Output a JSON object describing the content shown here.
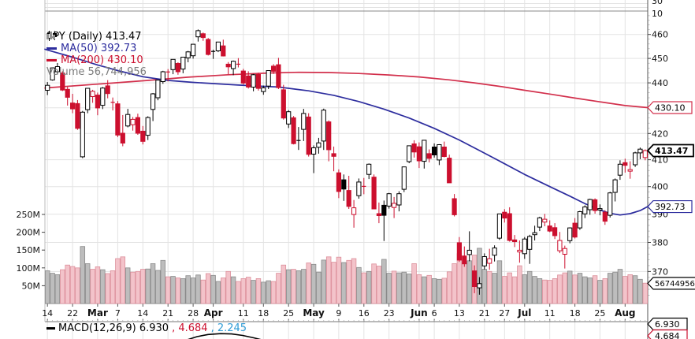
{
  "legend": {
    "symbol": "SPY (Daily) 413.47",
    "ma50": "MA(50) 392.73",
    "ma200": "MA(200) 430.10",
    "volume": "Volume 56,744,956"
  },
  "macd_legend": {
    "main": "MACD(12,26,9) 6.930",
    "signal": ", 4.684",
    "hist": ", 2.245"
  },
  "axis_tags": {
    "ma200": "430.10",
    "last": "413.47",
    "ma50": "392.73",
    "volume": "56744956",
    "macd": "6.930",
    "macd_signal": "4.684"
  },
  "top_panel": {
    "labels": [
      "30",
      "10"
    ]
  },
  "colors": {
    "candle_red": "#cc0f2e",
    "candle_black": "#000000",
    "ma50_blue": "#2d2d9e",
    "ma200_red": "#d2304c",
    "vol_up_fill": "#bdbdbd",
    "vol_up_border": "#8a8a8a",
    "vol_down_fill": "#f3c3ca",
    "vol_down_border": "#dc8f9b",
    "grid": "#e3e3e3",
    "border": "#777777",
    "axis_text": "#111111",
    "macd_hist_blue": "#2e9bd6"
  },
  "chart_data": {
    "type": "candlestick",
    "title": "SPY (Daily)",
    "last_price": 413.47,
    "ma50_value": 392.73,
    "ma200_value": 430.1,
    "last_volume": 56744956,
    "macd": {
      "label": "MACD(12,26,9)",
      "macd_line": 6.93,
      "signal": 4.684,
      "histogram": 2.245,
      "curve": [
        [
          236,
          431.5
        ],
        [
          250,
          427
        ],
        [
          264,
          424.3
        ],
        [
          280,
          423.2
        ],
        [
          294,
          423.6
        ],
        [
          308,
          425.5
        ],
        [
          322,
          428.5
        ],
        [
          334,
          431.5
        ]
      ]
    },
    "ylim": [
      359.3,
      470
    ],
    "price_axis_ticks": [
      460,
      450,
      440,
      430,
      420,
      410,
      400,
      390,
      380,
      370
    ],
    "volume_axis_ticks": [
      {
        "label": "250M",
        "v": 250
      },
      {
        "label": "200M",
        "v": 200
      },
      {
        "label": "150M",
        "v": 150
      },
      {
        "label": "100M",
        "v": 100
      },
      {
        "label": "50M",
        "v": 50
      }
    ],
    "date_ticks": [
      {
        "label": "14",
        "i": 0
      },
      {
        "label": "22",
        "i": 5
      },
      {
        "label": "Mar",
        "i": 10,
        "bold": true
      },
      {
        "label": "7",
        "i": 14
      },
      {
        "label": "14",
        "i": 19
      },
      {
        "label": "21",
        "i": 24
      },
      {
        "label": "28",
        "i": 29
      },
      {
        "label": "Apr",
        "i": 33,
        "bold": true
      },
      {
        "label": "11",
        "i": 39
      },
      {
        "label": "18",
        "i": 43
      },
      {
        "label": "25",
        "i": 48
      },
      {
        "label": "May",
        "i": 53,
        "bold": true
      },
      {
        "label": "9",
        "i": 58
      },
      {
        "label": "16",
        "i": 63
      },
      {
        "label": "23",
        "i": 68
      },
      {
        "label": "Jun",
        "i": 74,
        "bold": true
      },
      {
        "label": "6",
        "i": 77
      },
      {
        "label": "13",
        "i": 82
      },
      {
        "label": "21",
        "i": 87
      },
      {
        "label": "27",
        "i": 91
      },
      {
        "label": "Jul",
        "i": 95,
        "bold": true
      },
      {
        "label": "11",
        "i": 100
      },
      {
        "label": "18",
        "i": 105
      },
      {
        "label": "25",
        "i": 110
      },
      {
        "label": "Aug",
        "i": 115,
        "bold": true
      }
    ],
    "candles": [
      [
        437.0,
        440.3,
        435.1,
        439.0,
        92
      ],
      [
        441.2,
        446.3,
        440.9,
        446.1,
        85
      ],
      [
        444.5,
        448.1,
        443.4,
        446.6,
        81
      ],
      [
        444.0,
        444.7,
        436.7,
        437.1,
        95
      ],
      [
        437.4,
        438.4,
        430.9,
        434.2,
        108
      ],
      [
        431.9,
        435.6,
        427.9,
        429.6,
        104
      ],
      [
        431.7,
        433.1,
        421.4,
        422.0,
        100
      ],
      [
        411.1,
        428.8,
        410.6,
        428.3,
        160
      ],
      [
        429.3,
        437.9,
        427.9,
        437.8,
        112
      ],
      [
        434.5,
        437.2,
        432.0,
        436.6,
        96
      ],
      [
        435.1,
        436.1,
        427.1,
        430.0,
        103
      ],
      [
        431.0,
        438.3,
        429.5,
        437.9,
        95
      ],
      [
        438.8,
        441.1,
        433.8,
        435.7,
        84
      ],
      [
        432.0,
        434.1,
        429.0,
        432.2,
        92
      ],
      [
        431.6,
        432.7,
        418.6,
        419.4,
        126
      ],
      [
        420.1,
        427.2,
        415.1,
        416.3,
        131
      ],
      [
        422.9,
        429.6,
        422.4,
        427.4,
        100
      ],
      [
        423.4,
        426.4,
        421.1,
        425.5,
        88
      ],
      [
        426.2,
        427.7,
        419.5,
        420.1,
        90
      ],
      [
        420.9,
        422.9,
        415.8,
        417.0,
        96
      ],
      [
        419.3,
        426.7,
        417.5,
        426.2,
        97
      ],
      [
        429.4,
        435.9,
        424.8,
        435.6,
        112
      ],
      [
        434.0,
        441.3,
        433.0,
        441.1,
        93
      ],
      [
        440.5,
        444.9,
        439.6,
        444.5,
        121
      ],
      [
        444.3,
        445.6,
        440.6,
        444.4,
        75
      ],
      [
        445.4,
        449.7,
        443.5,
        449.6,
        76
      ],
      [
        447.9,
        448.4,
        443.3,
        444.5,
        72
      ],
      [
        445.6,
        450.5,
        443.9,
        450.5,
        70
      ],
      [
        450.2,
        453.1,
        448.4,
        452.7,
        78
      ],
      [
        451.1,
        456.0,
        449.9,
        455.9,
        72
      ],
      [
        459.0,
        462.1,
        457.0,
        461.6,
        80
      ],
      [
        460.3,
        460.8,
        457.3,
        458.7,
        66
      ],
      [
        457.9,
        458.5,
        451.2,
        451.6,
        84
      ],
      [
        453.1,
        453.6,
        449.8,
        452.9,
        79
      ],
      [
        453.1,
        456.9,
        452.6,
        456.8,
        62
      ],
      [
        455.2,
        457.8,
        450.8,
        451.0,
        72
      ],
      [
        447.6,
        448.5,
        443.5,
        446.5,
        90
      ],
      [
        445.8,
        449.1,
        443.1,
        448.8,
        75
      ],
      [
        447.5,
        450.1,
        446.3,
        447.6,
        62
      ],
      [
        444.8,
        445.7,
        439.3,
        439.9,
        70
      ],
      [
        442.8,
        444.7,
        437.7,
        438.3,
        74
      ],
      [
        438.3,
        443.6,
        436.6,
        443.3,
        65
      ],
      [
        443.4,
        444.1,
        436.9,
        437.8,
        70
      ],
      [
        436.5,
        438.9,
        435.2,
        438.0,
        60
      ],
      [
        438.7,
        445.1,
        437.5,
        445.0,
        64
      ],
      [
        446.8,
        447.6,
        443.6,
        444.7,
        62
      ],
      [
        447.4,
        450.2,
        437.5,
        438.1,
        85
      ],
      [
        437.2,
        439.2,
        425.4,
        426.0,
        108
      ],
      [
        423.7,
        429.1,
        422.1,
        428.5,
        95
      ],
      [
        426.1,
        426.8,
        415.8,
        416.1,
        96
      ],
      [
        417.6,
        422.5,
        413.7,
        417.3,
        92
      ],
      [
        421.6,
        429.6,
        417.1,
        427.8,
        96
      ],
      [
        426.4,
        427.9,
        411.2,
        412.0,
        114
      ],
      [
        412.1,
        415.4,
        405.0,
        414.5,
        110
      ],
      [
        414.7,
        418.3,
        412.3,
        416.4,
        88
      ],
      [
        417.1,
        429.7,
        413.7,
        429.1,
        122
      ],
      [
        424.5,
        425.1,
        409.4,
        413.8,
        131
      ],
      [
        412.3,
        415.0,
        405.7,
        411.3,
        116
      ],
      [
        405.1,
        406.4,
        395.8,
        398.2,
        130
      ],
      [
        402.5,
        404.5,
        394.8,
        399.1,
        115
      ],
      [
        398.6,
        404.0,
        391.9,
        392.8,
        121
      ],
      [
        389.9,
        395.1,
        385.2,
        392.3,
        126
      ],
      [
        396.7,
        403.0,
        395.6,
        401.7,
        101
      ],
      [
        399.8,
        403.2,
        397.2,
        400.1,
        86
      ],
      [
        404.5,
        408.6,
        402.8,
        408.3,
        90
      ],
      [
        403.5,
        404.5,
        391.8,
        391.9,
        111
      ],
      [
        390.2,
        394.2,
        386.8,
        389.5,
        105
      ],
      [
        393.2,
        394.9,
        380.5,
        389.6,
        124
      ],
      [
        392.9,
        397.7,
        392.0,
        397.4,
        85
      ],
      [
        392.4,
        396.2,
        388.6,
        393.9,
        91
      ],
      [
        393.3,
        398.3,
        391.0,
        397.4,
        86
      ],
      [
        399.0,
        407.4,
        398.0,
        407.3,
        88
      ],
      [
        409.3,
        415.4,
        408.7,
        415.3,
        83
      ],
      [
        416.0,
        417.4,
        410.8,
        412.9,
        112
      ],
      [
        414.9,
        416.6,
        406.9,
        409.6,
        81
      ],
      [
        409.4,
        417.4,
        406.7,
        417.4,
        75
      ],
      [
        412.3,
        413.9,
        409.0,
        410.5,
        79
      ],
      [
        414.8,
        416.2,
        410.8,
        411.8,
        70
      ],
      [
        409.9,
        415.9,
        408.0,
        415.7,
        68
      ],
      [
        414.8,
        416.9,
        410.9,
        411.2,
        71
      ],
      [
        410.6,
        411.9,
        401.4,
        401.4,
        89
      ],
      [
        395.6,
        397.3,
        389.2,
        389.8,
        112
      ],
      [
        379.9,
        381.9,
        373.3,
        373.9,
        140
      ],
      [
        375.3,
        378.6,
        371.6,
        372.6,
        115
      ],
      [
        375.8,
        383.9,
        373.5,
        377.3,
        120
      ],
      [
        370.2,
        372.1,
        362.7,
        364.9,
        136
      ],
      [
        364.5,
        368.1,
        362.2,
        365.9,
        155
      ],
      [
        371.9,
        376.2,
        370.7,
        375.1,
        96
      ],
      [
        372.8,
        377.8,
        370.6,
        374.4,
        90
      ],
      [
        375.6,
        379.0,
        373.4,
        378.1,
        85
      ],
      [
        381.5,
        390.2,
        380.9,
        390.1,
        120
      ],
      [
        390.7,
        391.8,
        387.0,
        388.6,
        76
      ],
      [
        390.2,
        392.5,
        380.3,
        380.7,
        86
      ],
      [
        380.9,
        382.6,
        378.4,
        380.3,
        75
      ],
      [
        376.7,
        380.7,
        373.0,
        377.3,
        106
      ],
      [
        376.1,
        381.9,
        374.3,
        381.2,
        81
      ],
      [
        377.6,
        382.7,
        372.6,
        382.1,
        90
      ],
      [
        382.7,
        385.9,
        380.7,
        383.4,
        76
      ],
      [
        385.4,
        389.1,
        384.0,
        388.7,
        70
      ],
      [
        387.2,
        390.1,
        385.7,
        388.2,
        66
      ],
      [
        385.8,
        387.8,
        383.6,
        384.0,
        65
      ],
      [
        385.2,
        386.8,
        381.2,
        382.4,
        70
      ],
      [
        377.1,
        383.7,
        376.3,
        380.7,
        80
      ],
      [
        375.9,
        378.9,
        371.0,
        377.9,
        86
      ],
      [
        380.6,
        385.3,
        379.7,
        385.1,
        91
      ],
      [
        386.8,
        388.6,
        381.4,
        381.9,
        80
      ],
      [
        385.1,
        391.2,
        384.4,
        390.9,
        85
      ],
      [
        390.1,
        393.2,
        388.6,
        392.6,
        75
      ],
      [
        391.6,
        395.6,
        389.8,
        395.3,
        72
      ],
      [
        395.2,
        395.7,
        390.2,
        391.3,
        78
      ],
      [
        391.5,
        393.5,
        389.6,
        392.0,
        65
      ],
      [
        390.7,
        391.4,
        386.2,
        387.5,
        70
      ],
      [
        389.6,
        398.1,
        388.8,
        397.7,
        85
      ],
      [
        397.9,
        403.0,
        394.6,
        402.5,
        88
      ],
      [
        404.2,
        409.8,
        402.5,
        408.3,
        96
      ],
      [
        408.9,
        410.4,
        405.2,
        407.9,
        76
      ],
      [
        405.7,
        409.4,
        402.9,
        406.3,
        81
      ],
      [
        408.1,
        413.0,
        407.3,
        412.6,
        78
      ],
      [
        412.6,
        414.6,
        410.2,
        414.0,
        68
      ],
      [
        410.8,
        413.9,
        409.8,
        413.47,
        57
      ]
    ],
    "ma50": {
      "name": "MA(50)",
      "points": [
        [
          -0.5,
          453.8
        ],
        [
          0,
          453.5
        ],
        [
          5,
          450.5
        ],
        [
          10,
          447.3
        ],
        [
          14,
          445.0
        ],
        [
          19,
          442.5
        ],
        [
          24,
          441.0
        ],
        [
          29,
          440.2
        ],
        [
          33,
          439.7
        ],
        [
          38,
          439.1
        ],
        [
          43,
          438.6
        ],
        [
          46,
          438.3
        ],
        [
          52,
          436.8
        ],
        [
          57,
          435.0
        ],
        [
          62,
          432.5
        ],
        [
          67,
          429.5
        ],
        [
          72,
          426.0
        ],
        [
          77,
          422.0
        ],
        [
          82,
          417.5
        ],
        [
          86,
          413.5
        ],
        [
          90,
          409.5
        ],
        [
          95,
          404.5
        ],
        [
          100,
          400.0
        ],
        [
          104,
          396.5
        ],
        [
          107,
          393.8
        ],
        [
          110,
          391.5
        ],
        [
          112,
          390.3
        ],
        [
          114,
          389.7
        ],
        [
          116,
          390.2
        ],
        [
          118,
          391.3
        ],
        [
          119.5,
          392.73
        ]
      ]
    },
    "ma200": {
      "name": "MA(200)",
      "points": [
        [
          -0.5,
          437.9
        ],
        [
          0,
          438.0
        ],
        [
          10,
          439.5
        ],
        [
          20,
          441.0
        ],
        [
          28,
          442.3
        ],
        [
          36,
          443.3
        ],
        [
          44,
          444.0
        ],
        [
          50,
          444.3
        ],
        [
          56,
          444.2
        ],
        [
          62,
          443.8
        ],
        [
          68,
          443.2
        ],
        [
          74,
          442.4
        ],
        [
          80,
          441.2
        ],
        [
          85,
          440.0
        ],
        [
          90,
          438.6
        ],
        [
          95,
          437.0
        ],
        [
          100,
          435.5
        ],
        [
          105,
          433.9
        ],
        [
          110,
          432.4
        ],
        [
          115,
          430.9
        ],
        [
          119.5,
          430.1
        ]
      ]
    }
  }
}
